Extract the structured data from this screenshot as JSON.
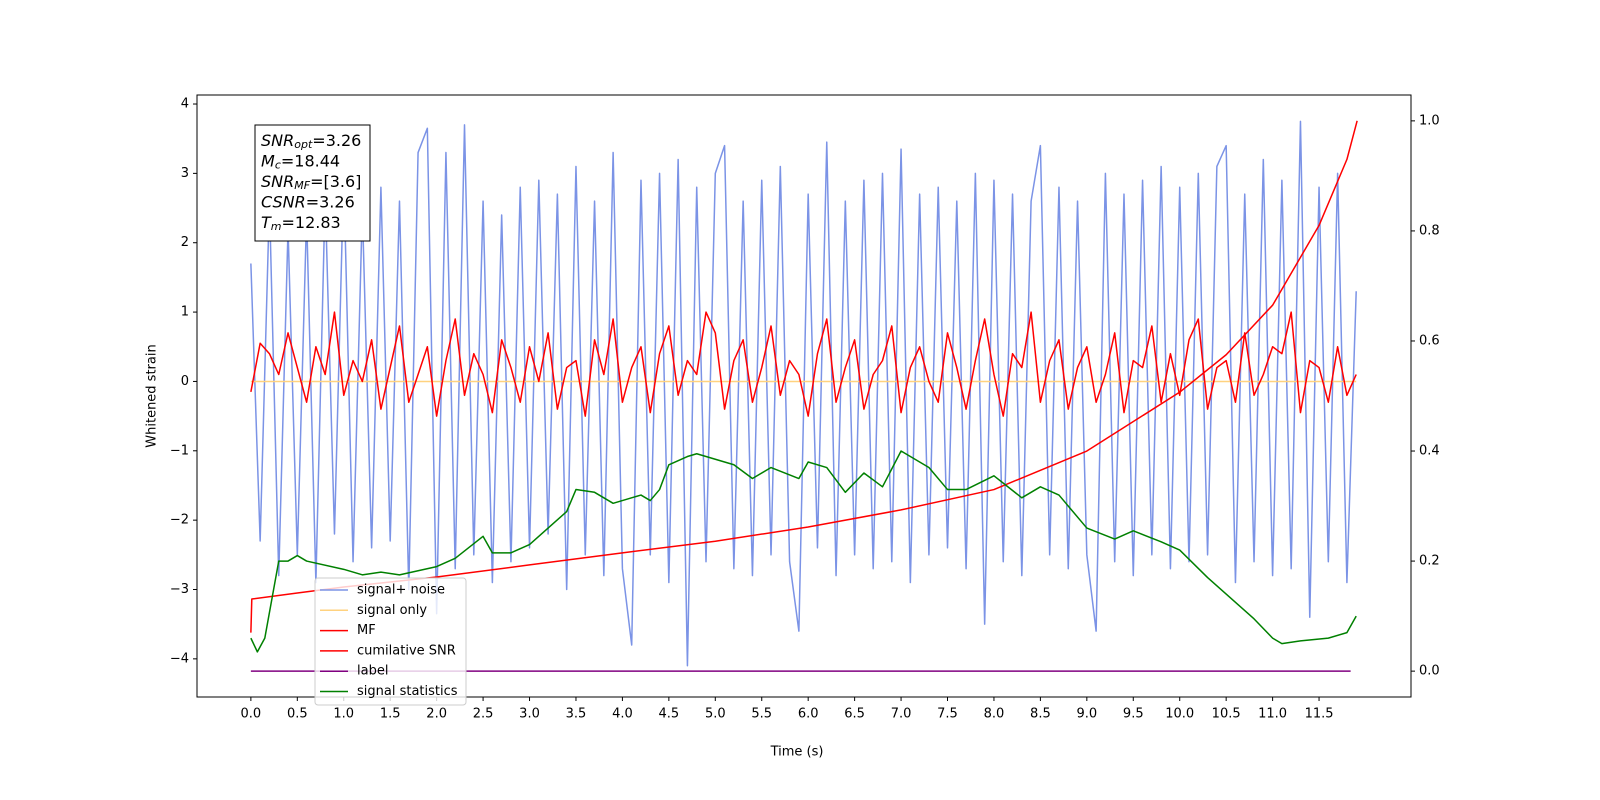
{
  "chart_data": {
    "type": "line",
    "ylabel": "Whitened strain",
    "xlabel": "Time (s)",
    "xlim": [
      -0.58,
      12.49
    ],
    "ylim": [
      -4.55,
      4.13
    ],
    "y2lim": [
      -0.047,
      1.047
    ],
    "xticks": [
      {
        "value": 0,
        "label": "0.0"
      },
      0.5,
      {
        "value": 1,
        "label": "1.0"
      },
      1.5,
      {
        "value": 2,
        "label": "2.0"
      },
      2.5,
      {
        "value": 3,
        "label": "3.0"
      },
      3.5,
      {
        "value": 4,
        "label": "4.0"
      },
      4.5,
      {
        "value": 5,
        "label": "5.0"
      },
      5.5,
      {
        "value": 6,
        "label": "6.0"
      },
      6.5,
      {
        "value": 7,
        "label": "7.0"
      },
      7.5,
      {
        "value": 8,
        "label": "8.0"
      },
      8.5,
      {
        "value": 9,
        "label": "9.0"
      },
      9.5,
      {
        "value": 10,
        "label": "10.0"
      },
      10.5,
      {
        "value": 11,
        "label": "11.0"
      },
      11.5
    ],
    "yticks": [
      {
        "value": -4,
        "label": "−4"
      },
      {
        "value": -3,
        "label": "−3"
      },
      {
        "value": -2,
        "label": "−2"
      },
      {
        "value": -1,
        "label": "−1"
      },
      0,
      1,
      2,
      3,
      4
    ],
    "y2ticks": [
      {
        "value": 0,
        "label": "0.0"
      },
      0.2,
      0.4,
      0.6,
      0.8,
      {
        "value": 1,
        "label": "1.0"
      }
    ],
    "grid": false,
    "legend": "lower left",
    "annotation_lines": [
      {
        "symbol": "SNR",
        "sub": "opt",
        "value": "=3.26"
      },
      {
        "symbol": "M",
        "sub": "c",
        "value": "=18.44"
      },
      {
        "symbol": "SNR",
        "sub": "MF",
        "value": "=[3.6]"
      },
      {
        "symbol": "CSNR",
        "value": "=3.26"
      },
      {
        "symbol": "T",
        "sub": "m",
        "value": "=12.83"
      }
    ],
    "x": [
      0.0,
      0.1,
      0.2,
      0.3,
      0.4,
      0.5,
      0.6,
      0.7,
      0.8,
      0.9,
      1.0,
      1.1,
      1.2,
      1.3,
      1.4,
      1.5,
      1.6,
      1.7,
      1.8,
      1.9,
      2.0,
      2.1,
      2.2,
      2.3,
      2.4,
      2.5,
      2.6,
      2.7,
      2.8,
      2.9,
      3.0,
      3.1,
      3.2,
      3.3,
      3.4,
      3.5,
      3.6,
      3.7,
      3.8,
      3.9,
      4.0,
      4.1,
      4.2,
      4.3,
      4.4,
      4.5,
      4.6,
      4.7,
      4.8,
      4.9,
      5.0,
      5.1,
      5.2,
      5.3,
      5.4,
      5.5,
      5.6,
      5.7,
      5.8,
      5.9,
      6.0,
      6.1,
      6.2,
      6.3,
      6.4,
      6.5,
      6.6,
      6.7,
      6.8,
      6.9,
      7.0,
      7.1,
      7.2,
      7.3,
      7.4,
      7.5,
      7.6,
      7.7,
      7.8,
      7.9,
      8.0,
      8.1,
      8.2,
      8.3,
      8.4,
      8.5,
      8.6,
      8.7,
      8.8,
      8.9,
      9.0,
      9.1,
      9.2,
      9.3,
      9.4,
      9.5,
      9.6,
      9.7,
      9.8,
      9.9,
      10.0,
      10.1,
      10.2,
      10.3,
      10.4,
      10.5,
      10.6,
      10.7,
      10.8,
      10.9,
      11.0,
      11.1,
      11.2,
      11.3,
      11.4,
      11.5,
      11.6,
      11.7,
      11.8,
      11.9
    ],
    "series": [
      {
        "name": "signal+ noise",
        "color": "#7b93e6",
        "values": [
          1.7,
          -2.3,
          2.6,
          -2.8,
          2.2,
          -2.5,
          2.4,
          -2.9,
          2.7,
          -2.2,
          3.0,
          -2.6,
          2.5,
          -2.4,
          2.8,
          -2.3,
          2.6,
          -3.0,
          3.3,
          3.65,
          -3.35,
          3.3,
          -2.7,
          3.7,
          -2.5,
          2.6,
          -2.9,
          2.4,
          -2.6,
          2.8,
          -2.4,
          2.9,
          -2.2,
          2.7,
          -3.0,
          3.1,
          -2.5,
          2.6,
          -2.8,
          3.3,
          -2.7,
          -3.8,
          2.9,
          -2.5,
          3.0,
          -2.9,
          3.2,
          -4.1,
          2.8,
          -2.6,
          3.0,
          3.4,
          -2.7,
          2.6,
          -2.8,
          2.9,
          -2.5,
          3.1,
          -2.6,
          -3.6,
          2.7,
          -2.4,
          3.45,
          -2.8,
          2.6,
          -2.5,
          2.9,
          -2.7,
          3.0,
          -2.6,
          3.35,
          -2.9,
          2.7,
          -2.5,
          2.8,
          -2.4,
          2.6,
          -2.7,
          3.0,
          -3.5,
          2.9,
          -2.6,
          2.7,
          -2.8,
          2.6,
          3.4,
          -2.5,
          2.8,
          -2.7,
          2.6,
          -2.5,
          -3.6,
          3.0,
          -2.6,
          2.7,
          -2.8,
          2.9,
          -2.5,
          3.1,
          -2.7,
          2.8,
          -2.6,
          3.0,
          -2.5,
          3.1,
          3.4,
          -2.9,
          2.7,
          -2.6,
          3.2,
          -2.8,
          2.9,
          -2.7,
          3.75,
          -3.4,
          2.8,
          -2.6,
          3.0,
          -2.9,
          1.3
        ]
      },
      {
        "name": "signal only",
        "color": "#ffd27f",
        "x": [
          0.0,
          3.0,
          6.0,
          9.0,
          11.9
        ],
        "values": [
          0.0,
          0.0,
          0.0,
          0.0,
          0.0
        ]
      },
      {
        "name": "MF",
        "color": "#ff0000",
        "values": [
          -0.15,
          0.55,
          0.4,
          0.1,
          0.7,
          0.2,
          -0.3,
          0.5,
          0.1,
          1.0,
          -0.2,
          0.3,
          0.0,
          0.6,
          -0.4,
          0.2,
          0.8,
          -0.3,
          0.1,
          0.5,
          -0.5,
          0.3,
          0.9,
          -0.2,
          0.4,
          0.1,
          -0.45,
          0.6,
          0.2,
          -0.3,
          0.5,
          0.0,
          0.7,
          -0.4,
          0.2,
          0.3,
          -0.5,
          0.6,
          0.1,
          0.9,
          -0.3,
          0.2,
          0.5,
          -0.45,
          0.4,
          0.8,
          -0.2,
          0.3,
          0.1,
          1.0,
          0.7,
          -0.4,
          0.3,
          0.6,
          -0.3,
          0.2,
          0.8,
          -0.2,
          0.3,
          0.1,
          -0.5,
          0.4,
          0.9,
          -0.3,
          0.2,
          0.6,
          -0.4,
          0.1,
          0.3,
          0.8,
          -0.45,
          0.2,
          0.5,
          0.0,
          -0.3,
          0.7,
          0.2,
          -0.4,
          0.3,
          0.9,
          0.1,
          -0.5,
          0.4,
          0.2,
          1.0,
          -0.3,
          0.3,
          0.6,
          -0.4,
          0.2,
          0.5,
          -0.3,
          0.1,
          0.7,
          -0.45,
          0.3,
          0.2,
          0.8,
          -0.3,
          0.4,
          -0.2,
          0.6,
          0.9,
          -0.4,
          0.2,
          0.3,
          -0.3,
          0.7,
          -0.2,
          0.1,
          0.5,
          0.4,
          1.0,
          -0.45,
          0.3,
          0.2,
          -0.3,
          0.5,
          -0.2,
          0.1
        ]
      },
      {
        "name": "cumilative SNR",
        "color": "#ff0000",
        "axis": "y2",
        "x": [
          0.0,
          0.01,
          0.5,
          1.0,
          2.0,
          3.0,
          4.0,
          5.0,
          6.0,
          7.0,
          8.0,
          9.0,
          10.0,
          10.5,
          11.0,
          11.5,
          11.8,
          11.91
        ],
        "values": [
          0.07,
          0.131,
          0.142,
          0.153,
          0.171,
          0.193,
          0.215,
          0.236,
          0.262,
          0.293,
          0.33,
          0.4,
          0.507,
          0.575,
          0.665,
          0.81,
          0.93,
          1.0
        ]
      },
      {
        "name": "label",
        "color": "#800080",
        "axis": "y2",
        "x": [
          0.0,
          11.84
        ],
        "values": [
          0.0,
          0.0
        ]
      },
      {
        "name": "signal statistics",
        "color": "#008000",
        "axis": "y2",
        "x": [
          0,
          0.07,
          0.15,
          0.3,
          0.4,
          0.5,
          0.6,
          1.0,
          1.2,
          1.4,
          1.6,
          2.0,
          2.2,
          2.5,
          2.6,
          2.8,
          3.0,
          3.2,
          3.4,
          3.5,
          3.7,
          3.9,
          4.2,
          4.3,
          4.4,
          4.5,
          4.7,
          4.8,
          5.0,
          5.2,
          5.4,
          5.6,
          5.9,
          6.0,
          6.2,
          6.4,
          6.6,
          6.8,
          7.0,
          7.3,
          7.5,
          7.7,
          8.0,
          8.3,
          8.5,
          8.7,
          9.0,
          9.3,
          9.5,
          9.8,
          10.0,
          10.3,
          10.5,
          10.8,
          11.0,
          11.1,
          11.3,
          11.6,
          11.8,
          11.9
        ],
        "values": [
          0.06,
          0.035,
          0.06,
          0.2,
          0.2,
          0.21,
          0.2,
          0.185,
          0.175,
          0.18,
          0.175,
          0.19,
          0.205,
          0.245,
          0.215,
          0.215,
          0.23,
          0.26,
          0.29,
          0.33,
          0.325,
          0.305,
          0.32,
          0.31,
          0.33,
          0.375,
          0.39,
          0.395,
          0.385,
          0.375,
          0.35,
          0.37,
          0.35,
          0.38,
          0.37,
          0.325,
          0.36,
          0.335,
          0.4,
          0.37,
          0.33,
          0.33,
          0.355,
          0.315,
          0.335,
          0.32,
          0.26,
          0.24,
          0.255,
          0.235,
          0.22,
          0.17,
          0.14,
          0.095,
          0.06,
          0.05,
          0.055,
          0.06,
          0.07,
          0.1
        ]
      }
    ]
  }
}
